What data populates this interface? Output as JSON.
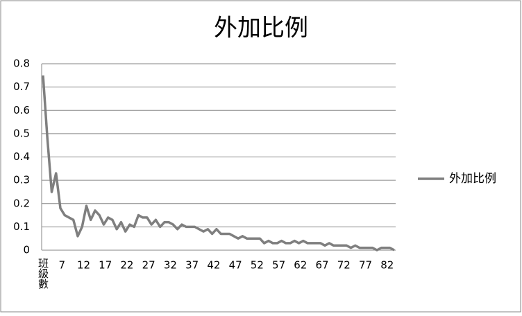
{
  "chart_data": {
    "type": "line",
    "title": "外加比例",
    "categories": [
      "班級數",
      null,
      null,
      null,
      null,
      "7",
      null,
      null,
      null,
      null,
      "12",
      null,
      null,
      null,
      null,
      "17",
      null,
      null,
      null,
      null,
      "22",
      null,
      null,
      null,
      null,
      "27",
      null,
      null,
      null,
      null,
      "32",
      null,
      null,
      null,
      null,
      "37",
      null,
      null,
      null,
      null,
      "42",
      null,
      null,
      null,
      null,
      "47",
      null,
      null,
      null,
      null,
      "52",
      null,
      null,
      null,
      null,
      "57",
      null,
      null,
      null,
      null,
      "62",
      null,
      null,
      null,
      null,
      "67",
      null,
      null,
      null,
      null,
      "72",
      null,
      null,
      null,
      null,
      "77",
      null,
      null,
      null,
      null,
      "82",
      null
    ],
    "series": [
      {
        "name": "外加比例",
        "color": "#7f7f7f",
        "values": [
          0.75,
          0.48,
          0.25,
          0.33,
          0.18,
          0.15,
          0.14,
          0.13,
          0.06,
          0.1,
          0.19,
          0.13,
          0.17,
          0.15,
          0.11,
          0.14,
          0.13,
          0.09,
          0.12,
          0.08,
          0.11,
          0.1,
          0.15,
          0.14,
          0.14,
          0.11,
          0.13,
          0.1,
          0.12,
          0.12,
          0.11,
          0.09,
          0.11,
          0.1,
          0.1,
          0.1,
          0.09,
          0.08,
          0.09,
          0.07,
          0.09,
          0.07,
          0.07,
          0.07,
          0.06,
          0.05,
          0.06,
          0.05,
          0.05,
          0.05,
          0.05,
          0.03,
          0.04,
          0.03,
          0.03,
          0.04,
          0.03,
          0.03,
          0.04,
          0.03,
          0.04,
          0.03,
          0.03,
          0.03,
          0.03,
          0.02,
          0.03,
          0.02,
          0.02,
          0.02,
          0.02,
          0.01,
          0.02,
          0.01,
          0.01,
          0.01,
          0.01,
          0,
          0.01,
          0.01,
          0.01,
          0
        ]
      }
    ],
    "ylim": [
      0,
      0.8
    ],
    "yticks": [
      0,
      0.1,
      0.2,
      0.3,
      0.4,
      0.5,
      0.6,
      0.7,
      0.8
    ],
    "grid": true,
    "legend": "right"
  }
}
